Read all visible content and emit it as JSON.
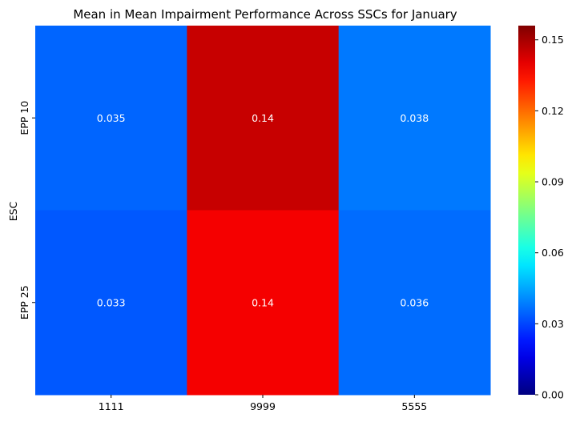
{
  "chart_data": {
    "type": "heatmap",
    "title": "Mean in Mean Impairment Performance Across SSCs for January",
    "xlabel": "",
    "ylabel": "ESC",
    "x_categories": [
      "1111",
      "9999",
      "5555"
    ],
    "y_categories": [
      "EPP 10",
      "EPP 25"
    ],
    "values": [
      [
        0.035,
        0.145,
        0.038
      ],
      [
        0.033,
        0.138,
        0.036
      ]
    ],
    "annotations": [
      [
        "0.035",
        "0.14",
        "0.038"
      ],
      [
        "0.033",
        "0.14",
        "0.036"
      ]
    ],
    "colormap": "jet",
    "color_range": [
      0.0,
      0.156
    ],
    "colorbar_ticks": [
      0.0,
      0.03,
      0.06,
      0.09,
      0.12,
      0.15
    ],
    "colorbar_tick_labels": [
      "0.00",
      "0.03",
      "0.06",
      "0.09",
      "0.12",
      "0.15"
    ],
    "grid": false,
    "legend": "colorbar-right"
  }
}
